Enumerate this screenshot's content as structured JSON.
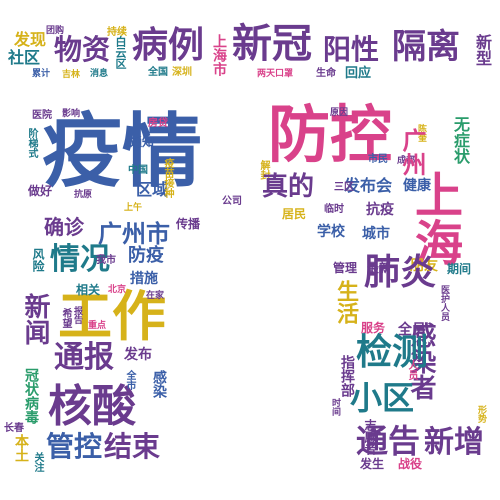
{
  "colors": {
    "blue": "#3b5fa8",
    "pink": "#d9428a",
    "purple": "#6a3b8e",
    "green": "#2a9c6b",
    "teal": "#1f7a8a",
    "yellow": "#d6b21a",
    "red": "#c63b3b"
  },
  "words": [
    {
      "text": "疫情",
      "color": "blue"
    },
    {
      "text": "防控",
      "color": "pink"
    },
    {
      "text": "上海",
      "color": "pink"
    },
    {
      "text": "工作",
      "color": "yellow"
    },
    {
      "text": "核酸",
      "color": "purple"
    },
    {
      "text": "新冠",
      "color": "purple"
    },
    {
      "text": "病例",
      "color": "purple"
    },
    {
      "text": "隔离",
      "color": "purple"
    },
    {
      "text": "物资",
      "color": "purple"
    },
    {
      "text": "阳性",
      "color": "purple"
    },
    {
      "text": "肺炎",
      "color": "purple"
    },
    {
      "text": "检测",
      "color": "teal"
    },
    {
      "text": "情况",
      "color": "teal"
    },
    {
      "text": "新闻",
      "color": "purple"
    },
    {
      "text": "通报",
      "color": "purple"
    },
    {
      "text": "通告",
      "color": "purple"
    },
    {
      "text": "小区",
      "color": "teal"
    },
    {
      "text": "新增",
      "color": "purple"
    },
    {
      "text": "管控",
      "color": "blue"
    },
    {
      "text": "结束",
      "color": "purple"
    },
    {
      "text": "感染者",
      "color": "purple"
    },
    {
      "text": "广州市",
      "color": "blue"
    },
    {
      "text": "广州",
      "color": "pink"
    },
    {
      "text": "真的",
      "color": "purple"
    },
    {
      "text": "确诊",
      "color": "purple"
    },
    {
      "text": "区域",
      "color": "blue"
    },
    {
      "text": "防疫",
      "color": "blue"
    },
    {
      "text": "发布会",
      "color": "blue"
    },
    {
      "text": "健康",
      "color": "blue"
    },
    {
      "text": "生活",
      "color": "yellow"
    },
    {
      "text": "新型",
      "color": "purple"
    },
    {
      "text": "发现",
      "color": "yellow"
    },
    {
      "text": "社区",
      "color": "teal"
    },
    {
      "text": "团购",
      "color": "purple"
    },
    {
      "text": "持续",
      "color": "yellow"
    },
    {
      "text": "累计",
      "color": "blue"
    },
    {
      "text": "吉林",
      "color": "yellow"
    },
    {
      "text": "消息",
      "color": "teal"
    },
    {
      "text": "白云区",
      "color": "teal"
    },
    {
      "text": "全国",
      "color": "teal"
    },
    {
      "text": "深圳",
      "color": "yellow"
    },
    {
      "text": "上海市",
      "color": "pink"
    },
    {
      "text": "两天口罩",
      "color": "pink"
    },
    {
      "text": "生命",
      "color": "purple"
    },
    {
      "text": "回应",
      "color": "teal"
    },
    {
      "text": "无症状",
      "color": "green"
    },
    {
      "text": "原因",
      "color": "purple"
    },
    {
      "text": "房贷",
      "color": "pink"
    },
    {
      "text": "医院",
      "color": "purple"
    },
    {
      "text": "影响",
      "color": "purple"
    },
    {
      "text": "阶梯式",
      "color": "teal"
    },
    {
      "text": "通知",
      "color": "blue"
    },
    {
      "text": "中国",
      "color": "teal"
    },
    {
      "text": "做好",
      "color": "purple"
    },
    {
      "text": "抗原",
      "color": "purple"
    },
    {
      "text": "上午",
      "color": "yellow"
    },
    {
      "text": "解封",
      "color": "yellow"
    },
    {
      "text": "公司",
      "color": "purple"
    },
    {
      "text": "市民",
      "color": "blue"
    },
    {
      "text": "成都",
      "color": "purple"
    },
    {
      "text": "陈奎",
      "color": "yellow"
    },
    {
      "text": "三区",
      "color": "purple"
    },
    {
      "text": "临时",
      "color": "purple"
    },
    {
      "text": "抗疫",
      "color": "purple"
    },
    {
      "text": "居民",
      "color": "yellow"
    },
    {
      "text": "学校",
      "color": "blue"
    },
    {
      "text": "城市",
      "color": "blue"
    },
    {
      "text": "传播",
      "color": "purple"
    },
    {
      "text": "我市",
      "color": "purple"
    },
    {
      "text": "风险",
      "color": "teal"
    },
    {
      "text": "管理",
      "color": "purple"
    },
    {
      "text": "最新",
      "color": "purple"
    },
    {
      "text": "朋友",
      "color": "yellow"
    },
    {
      "text": "期间",
      "color": "teal"
    },
    {
      "text": "措施",
      "color": "blue"
    },
    {
      "text": "相关",
      "color": "teal"
    },
    {
      "text": "北京",
      "color": "pink"
    },
    {
      "text": "在家",
      "color": "purple"
    },
    {
      "text": "医护人员",
      "color": "purple"
    },
    {
      "text": "希望",
      "color": "purple"
    },
    {
      "text": "报告",
      "color": "purple"
    },
    {
      "text": "重点",
      "color": "pink"
    },
    {
      "text": "服务",
      "color": "pink"
    },
    {
      "text": "全员",
      "color": "purple"
    },
    {
      "text": "发布",
      "color": "purple"
    },
    {
      "text": "全市",
      "color": "blue"
    },
    {
      "text": "感染",
      "color": "blue"
    },
    {
      "text": "冠状病毒",
      "color": "green"
    },
    {
      "text": "长春",
      "color": "purple"
    },
    {
      "text": "本土",
      "color": "yellow"
    },
    {
      "text": "关注",
      "color": "teal"
    },
    {
      "text": "指挥部",
      "color": "purple"
    },
    {
      "text": "人员",
      "color": "pink"
    },
    {
      "text": "志愿者",
      "color": "purple"
    },
    {
      "text": "战役",
      "color": "pink"
    },
    {
      "text": "发生",
      "color": "purple"
    },
    {
      "text": "形势",
      "color": "yellow"
    },
    {
      "text": "时间",
      "color": "purple"
    },
    {
      "text": "疫苗接种",
      "color": "yellow"
    }
  ]
}
